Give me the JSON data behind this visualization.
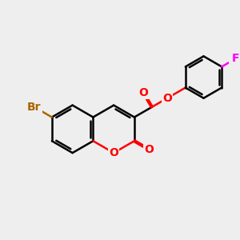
{
  "background_color": "#eeeeee",
  "bond_color": "#000000",
  "bond_width": 1.8,
  "atom_colors": {
    "Br": "#AA6600",
    "O": "#FF0000",
    "F": "#FF00FF",
    "C": "#000000"
  },
  "font_size_atoms": 10,
  "scale": 1.0
}
